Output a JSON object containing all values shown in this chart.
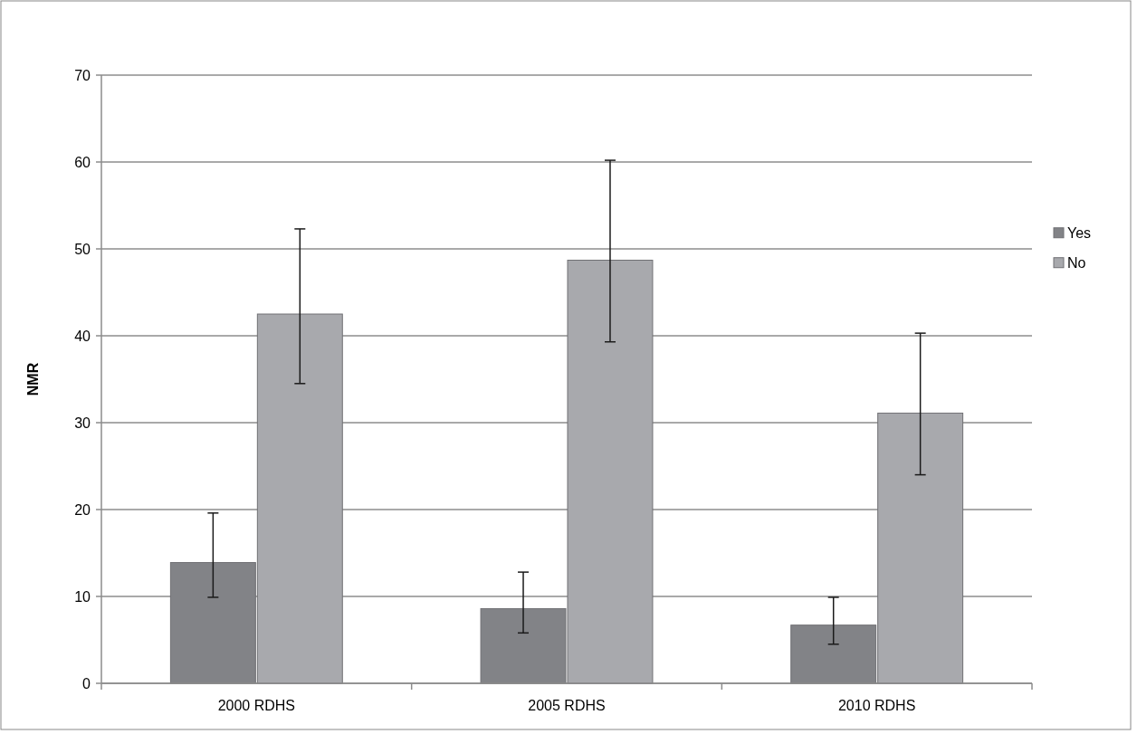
{
  "chart_data": {
    "type": "bar",
    "ylabel": "NMR",
    "categories": [
      "2000 RDHS",
      "2005 RDHS",
      "2010 RDHS"
    ],
    "series": [
      {
        "name": "Yes",
        "color": "#828387",
        "values": [
          13.9,
          8.6,
          6.7
        ],
        "errors": [
          [
            9.9,
            19.6
          ],
          [
            5.8,
            12.8
          ],
          [
            4.5,
            9.9
          ]
        ]
      },
      {
        "name": "No",
        "color": "#a8a9ad",
        "values": [
          42.5,
          48.7,
          31.1
        ],
        "errors": [
          [
            34.5,
            52.3
          ],
          [
            39.3,
            60.2
          ],
          [
            24.0,
            40.3
          ]
        ]
      }
    ],
    "ylim": [
      0,
      70
    ],
    "yticks": [
      0,
      10,
      20,
      30,
      40,
      50,
      60,
      70
    ],
    "grid": "y",
    "legend": "right"
  }
}
